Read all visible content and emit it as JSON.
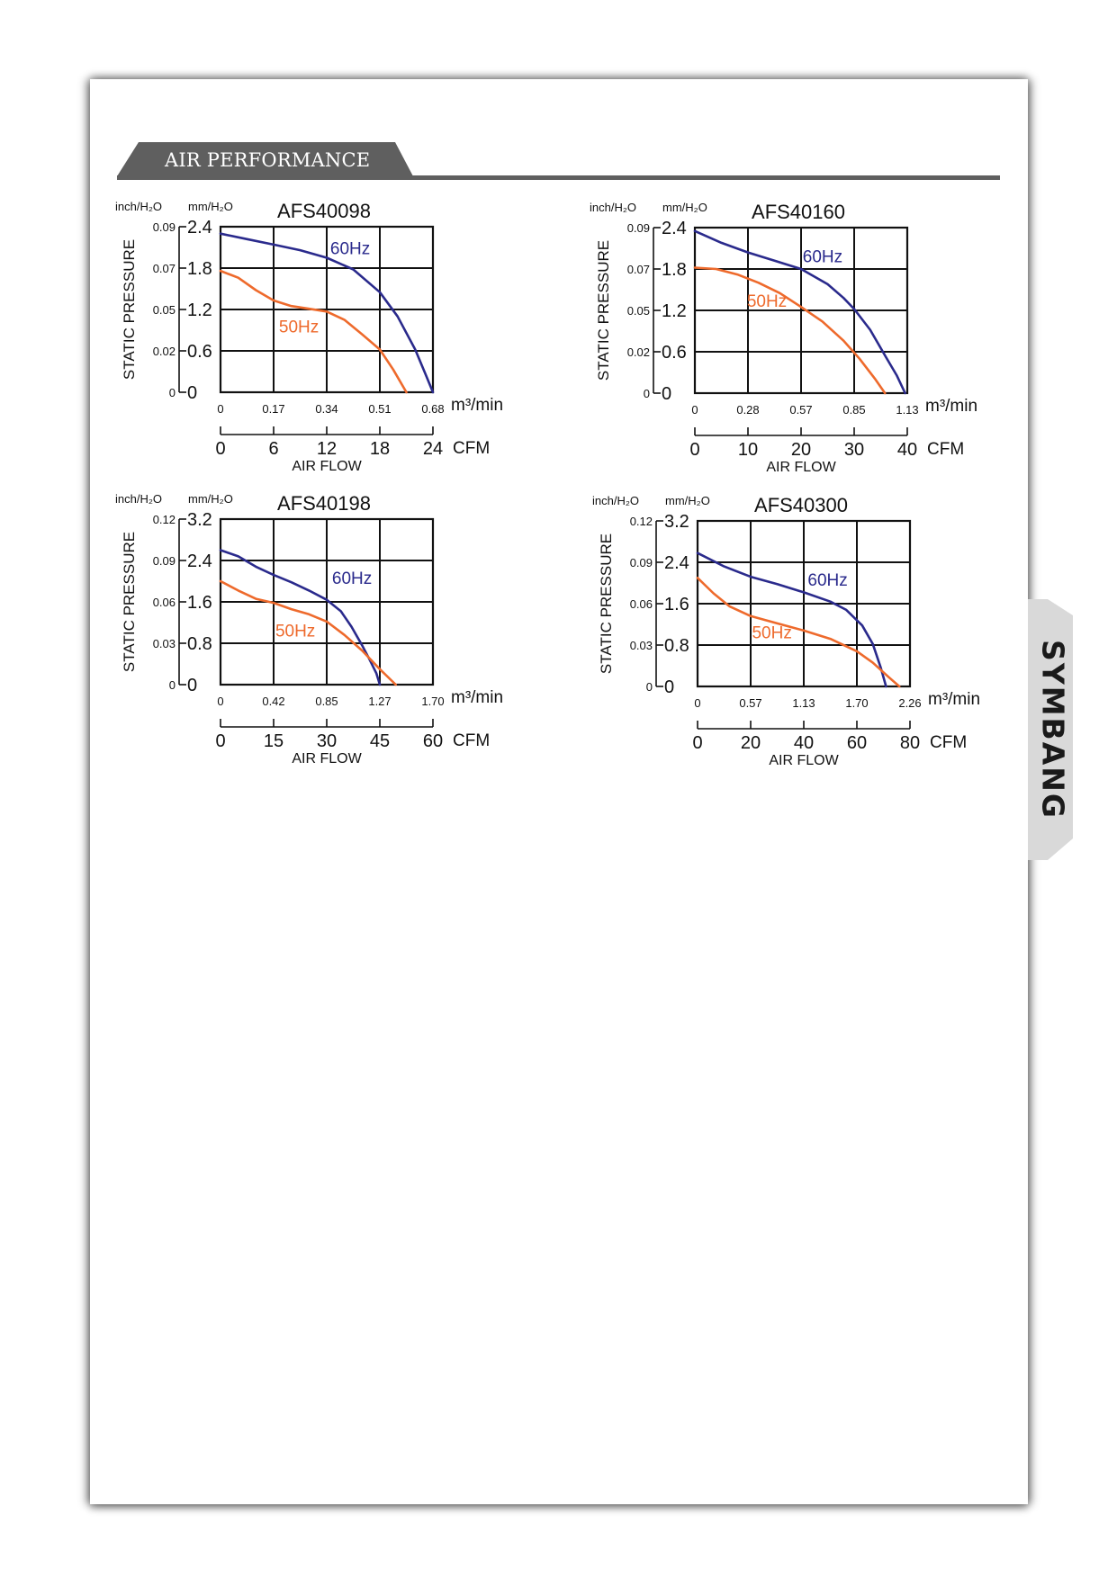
{
  "section": {
    "title": "AIR PERFORMANCE"
  },
  "brand": {
    "name": "SYMBANG",
    "accent_color": "#c62828"
  },
  "colors": {
    "line_60hz": "#2a2a8c",
    "line_50hz": "#ee6a2c",
    "header_bar": "#5f5f5f"
  },
  "chart_data": [
    {
      "type": "line",
      "title": "AFS40098",
      "y_units": [
        "inch/H₂O",
        "mm/H₂O"
      ],
      "ylabel": "STATIC PRESSURE",
      "y_ticks_mm": [
        "2.4",
        "1.8",
        "1.2",
        "0.6",
        "0"
      ],
      "y_ticks_inch": [
        "0.09",
        "0.07",
        "0.05",
        "0.02",
        "0"
      ],
      "xlabel": "AIR FLOW",
      "x_ticks_m3": [
        "0",
        "0.17",
        "0.34",
        "0.51",
        "0.68"
      ],
      "x_unit_m3": "m³/min",
      "x_ticks_cfm": [
        "0",
        "6",
        "12",
        "18",
        "24"
      ],
      "x_unit_cfm": "CFM",
      "xlim_cfm": [
        0,
        24
      ],
      "ylim_mm": [
        0,
        2.4
      ],
      "grid": true,
      "series": [
        {
          "name": "60Hz",
          "label_at": [
            12.4,
            2.0
          ],
          "points": [
            [
              0,
              2.3
            ],
            [
              3,
              2.22
            ],
            [
              6,
              2.14
            ],
            [
              9,
              2.06
            ],
            [
              12,
              1.95
            ],
            [
              15,
              1.78
            ],
            [
              18,
              1.45
            ],
            [
              20,
              1.1
            ],
            [
              22,
              0.62
            ],
            [
              23.2,
              0.25
            ],
            [
              24,
              0
            ]
          ]
        },
        {
          "name": "50Hz",
          "label_at": [
            6.6,
            0.87
          ],
          "points": [
            [
              0,
              1.76
            ],
            [
              2,
              1.66
            ],
            [
              4,
              1.48
            ],
            [
              6,
              1.33
            ],
            [
              8,
              1.25
            ],
            [
              10,
              1.21
            ],
            [
              12,
              1.17
            ],
            [
              14,
              1.05
            ],
            [
              16,
              0.84
            ],
            [
              18,
              0.62
            ],
            [
              19.5,
              0.33
            ],
            [
              21,
              0
            ]
          ]
        }
      ]
    },
    {
      "type": "line",
      "title": "AFS40160",
      "y_units": [
        "inch/H₂O",
        "mm/H₂O"
      ],
      "ylabel": "STATIC PRESSURE",
      "y_ticks_mm": [
        "2.4",
        "1.8",
        "1.2",
        "0.6",
        "0"
      ],
      "y_ticks_inch": [
        "0.09",
        "0.07",
        "0.05",
        "0.02",
        "0"
      ],
      "xlabel": "AIR FLOW",
      "x_ticks_m3": [
        "0",
        "0.28",
        "0.57",
        "0.85",
        "1.13"
      ],
      "x_unit_m3": "m³/min",
      "x_ticks_cfm": [
        "0",
        "10",
        "20",
        "30",
        "40"
      ],
      "x_unit_cfm": "CFM",
      "xlim_cfm": [
        0,
        40
      ],
      "ylim_mm": [
        0,
        2.4
      ],
      "grid": true,
      "series": [
        {
          "name": "60Hz",
          "label_at": [
            20.3,
            1.9
          ],
          "points": [
            [
              0,
              2.35
            ],
            [
              5,
              2.18
            ],
            [
              10,
              2.04
            ],
            [
              15,
              1.92
            ],
            [
              20,
              1.8
            ],
            [
              25,
              1.58
            ],
            [
              28,
              1.38
            ],
            [
              30,
              1.22
            ],
            [
              33,
              0.92
            ],
            [
              36,
              0.52
            ],
            [
              38,
              0.26
            ],
            [
              39.6,
              0
            ]
          ]
        },
        {
          "name": "50Hz",
          "label_at": [
            9.8,
            1.25
          ],
          "points": [
            [
              0,
              1.82
            ],
            [
              4,
              1.8
            ],
            [
              8,
              1.72
            ],
            [
              12,
              1.6
            ],
            [
              16,
              1.45
            ],
            [
              20,
              1.25
            ],
            [
              24,
              1.04
            ],
            [
              28,
              0.76
            ],
            [
              31,
              0.5
            ],
            [
              34,
              0.2
            ],
            [
              35.8,
              0
            ]
          ]
        }
      ]
    },
    {
      "type": "line",
      "title": "AFS40198",
      "y_units": [
        "inch/H₂O",
        "mm/H₂O"
      ],
      "ylabel": "STATIC PRESSURE",
      "y_ticks_mm": [
        "3.2",
        "2.4",
        "1.6",
        "0.8",
        "0"
      ],
      "y_ticks_inch": [
        "0.12",
        "0.09",
        "0.06",
        "0.03",
        "0"
      ],
      "xlabel": "AIR FLOW",
      "x_ticks_m3": [
        "0",
        "0.42",
        "0.85",
        "1.27",
        "1.70"
      ],
      "x_unit_m3": "m³/min",
      "x_ticks_cfm": [
        "0",
        "15",
        "30",
        "45",
        "60"
      ],
      "x_unit_cfm": "CFM",
      "xlim_cfm": [
        0,
        60
      ],
      "ylim_mm": [
        0,
        3.2
      ],
      "grid": true,
      "series": [
        {
          "name": "60Hz",
          "label_at": [
            31.5,
            1.95
          ],
          "points": [
            [
              0,
              2.6
            ],
            [
              5,
              2.48
            ],
            [
              10,
              2.28
            ],
            [
              15,
              2.12
            ],
            [
              20,
              1.98
            ],
            [
              25,
              1.82
            ],
            [
              30,
              1.64
            ],
            [
              34,
              1.42
            ],
            [
              37,
              1.12
            ],
            [
              40,
              0.76
            ],
            [
              42,
              0.5
            ],
            [
              44,
              0.22
            ],
            [
              45,
              0
            ]
          ]
        },
        {
          "name": "50Hz",
          "label_at": [
            15.5,
            0.93
          ],
          "points": [
            [
              0,
              2.0
            ],
            [
              5,
              1.82
            ],
            [
              10,
              1.66
            ],
            [
              15,
              1.58
            ],
            [
              20,
              1.46
            ],
            [
              25,
              1.36
            ],
            [
              30,
              1.22
            ],
            [
              35,
              0.96
            ],
            [
              40,
              0.66
            ],
            [
              45,
              0.3
            ],
            [
              49.5,
              0
            ]
          ]
        }
      ]
    },
    {
      "type": "line",
      "title": "AFS40300",
      "y_units": [
        "inch/H₂O",
        "mm/H₂O"
      ],
      "ylabel": "STATIC PRESSURE",
      "y_ticks_mm": [
        "3.2",
        "2.4",
        "1.6",
        "0.8",
        "0"
      ],
      "y_ticks_inch": [
        "0.12",
        "0.09",
        "0.06",
        "0.03",
        "0"
      ],
      "xlabel": "AIR FLOW",
      "x_ticks_m3": [
        "0",
        "0.57",
        "1.13",
        "1.70",
        "2.26"
      ],
      "x_unit_m3": "m³/min",
      "x_ticks_cfm": [
        "0",
        "20",
        "40",
        "60",
        "80"
      ],
      "x_unit_cfm": "CFM",
      "xlim_cfm": [
        0,
        80
      ],
      "ylim_mm": [
        0,
        3.2
      ],
      "grid": true,
      "series": [
        {
          "name": "60Hz",
          "label_at": [
            41.5,
            1.95
          ],
          "points": [
            [
              0,
              2.58
            ],
            [
              10,
              2.32
            ],
            [
              20,
              2.12
            ],
            [
              30,
              1.98
            ],
            [
              40,
              1.82
            ],
            [
              50,
              1.64
            ],
            [
              56,
              1.48
            ],
            [
              62,
              1.18
            ],
            [
              66,
              0.82
            ],
            [
              69,
              0.36
            ],
            [
              71,
              0
            ]
          ]
        },
        {
          "name": "50Hz",
          "label_at": [
            20.5,
            0.93
          ],
          "points": [
            [
              0,
              2.1
            ],
            [
              6,
              1.8
            ],
            [
              12,
              1.55
            ],
            [
              20,
              1.36
            ],
            [
              30,
              1.22
            ],
            [
              40,
              1.08
            ],
            [
              50,
              0.92
            ],
            [
              60,
              0.68
            ],
            [
              66,
              0.46
            ],
            [
              72,
              0.18
            ],
            [
              76,
              0
            ]
          ]
        }
      ]
    }
  ]
}
